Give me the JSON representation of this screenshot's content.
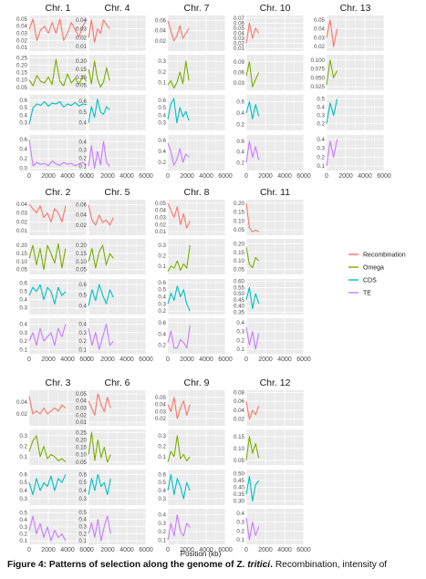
{
  "figure": {
    "x_axis_label": "Position (kb)",
    "x_ticks": [
      "0",
      "2000",
      "4000",
      "6000"
    ],
    "legend": [
      {
        "name": "Recombination",
        "color": "#F8766D"
      },
      {
        "name": "Omega",
        "color": "#7CAE00"
      },
      {
        "name": "CDS",
        "color": "#00BFC4"
      },
      {
        "name": "TE",
        "color": "#C77CFF"
      }
    ]
  },
  "caption": {
    "bold": "Figure 4: Patterns of selection along the genome of Z. ",
    "bold_italic": "tritici",
    "bold_end": ".",
    "rest": " Recombination, intensity of"
  },
  "chart_data": {
    "type": "line",
    "x_range": [
      0,
      6000
    ],
    "rows": [
      "Recombination",
      "Omega",
      "CDS",
      "TE"
    ],
    "panels": [
      {
        "chr": "Chr. 1",
        "length": 6000,
        "ticks": [
          [
            "0.01",
            "0.02",
            "0.03",
            "0.04",
            "0.05"
          ],
          [
            "0.05",
            "0.10",
            "0.15",
            "0.20",
            "0.25"
          ],
          [
            "0.3",
            "0.4",
            "0.5",
            "0.6"
          ],
          [
            "0.0",
            "0.2",
            "0.4",
            "0.6"
          ]
        ],
        "ranges": [
          [
            0.005,
            0.055
          ],
          [
            0.03,
            0.27
          ],
          [
            0.2,
            0.67
          ],
          [
            -0.05,
            0.7
          ]
        ],
        "series": [
          [
            0.035,
            0.05,
            0.02,
            0.035,
            0.04,
            0.03,
            0.045,
            0.03,
            0.05,
            0.02,
            0.03,
            0.045,
            0.035,
            0.025,
            0.04,
            0.05
          ],
          [
            0.1,
            0.06,
            0.13,
            0.09,
            0.08,
            0.12,
            0.07,
            0.24,
            0.09,
            0.06,
            0.14,
            0.08,
            0.11,
            0.07,
            0.13,
            0.09
          ],
          [
            0.28,
            0.5,
            0.55,
            0.53,
            0.58,
            0.52,
            0.56,
            0.55,
            0.58,
            0.51,
            0.55,
            0.53,
            0.57,
            0.52,
            0.55,
            0.54
          ],
          [
            0.6,
            0.05,
            0.12,
            0.08,
            0.1,
            0.05,
            0.15,
            0.09,
            0.06,
            0.12,
            0.08,
            0.1,
            0.05,
            0.09,
            0.12,
            0.07
          ]
        ]
      },
      {
        "chr": "Chr. 4",
        "length": 2200,
        "ticks": [
          [
            "0.01",
            "0.02",
            "0.03",
            "0.04"
          ],
          [
            "0.05",
            "0.10",
            "0.15",
            "0.20"
          ],
          [
            "0.4",
            "0.5",
            "0.6"
          ],
          [
            "0.1",
            "0.2",
            "0.3",
            "0.4"
          ]
        ],
        "ranges": [
          [
            0.005,
            0.045
          ],
          [
            0.02,
            0.24
          ],
          [
            0.33,
            0.66
          ],
          [
            0.05,
            0.48
          ]
        ],
        "series": [
          [
            0.02,
            0.04,
            0.015,
            0.03,
            0.025,
            0.04,
            0.035,
            0.03
          ],
          [
            0.15,
            0.06,
            0.2,
            0.09,
            0.04,
            0.07,
            0.16,
            0.08
          ],
          [
            0.4,
            0.55,
            0.45,
            0.62,
            0.5,
            0.48,
            0.55,
            0.52
          ],
          [
            0.1,
            0.35,
            0.08,
            0.28,
            0.12,
            0.4,
            0.15,
            0.1
          ]
        ]
      },
      {
        "chr": "Chr. 7",
        "length": 2200,
        "ticks": [
          [
            "0.02",
            "0.04",
            "0.06"
          ],
          [
            "0.1",
            "0.2",
            "0.3"
          ],
          [
            "0.3",
            "0.4",
            "0.5",
            "0.6"
          ],
          [
            "0.2",
            "0.4",
            "0.6"
          ]
        ],
        "ranges": [
          [
            0.0,
            0.07
          ],
          [
            0.03,
            0.36
          ],
          [
            0.2,
            0.67
          ],
          [
            0.05,
            0.7
          ]
        ],
        "series": [
          [
            0.06,
            0.04,
            0.02,
            0.03,
            0.05,
            0.025,
            0.035,
            0.045
          ],
          [
            0.08,
            0.12,
            0.05,
            0.1,
            0.2,
            0.09,
            0.3,
            0.12
          ],
          [
            0.35,
            0.55,
            0.62,
            0.3,
            0.5,
            0.38,
            0.45,
            0.33
          ],
          [
            0.55,
            0.4,
            0.15,
            0.25,
            0.45,
            0.2,
            0.35,
            0.3
          ]
        ]
      },
      {
        "chr": "Chr. 10",
        "length": 1300,
        "ticks": [
          [
            "0.01",
            "0.02",
            "0.03",
            "0.04",
            "0.05",
            "0.06",
            "0.07"
          ],
          [
            "0.03",
            "0.06",
            "0.09"
          ],
          [
            "0.2",
            "0.4",
            "0.6"
          ],
          [
            "0.2",
            "0.4",
            "0.6"
          ]
        ],
        "ranges": [
          [
            0.005,
            0.075
          ],
          [
            0.01,
            0.11
          ],
          [
            0.1,
            0.72
          ],
          [
            0.05,
            0.72
          ]
        ],
        "series": [
          [
            0.02,
            0.06,
            0.03,
            0.05,
            0.04
          ],
          [
            0.05,
            0.09,
            0.02,
            0.04,
            0.06
          ],
          [
            0.4,
            0.6,
            0.3,
            0.55,
            0.35
          ],
          [
            0.2,
            0.6,
            0.3,
            0.5,
            0.25
          ]
        ]
      },
      {
        "chr": "Chr. 13",
        "length": 1100,
        "ticks": [
          [
            "0.02",
            "0.03",
            "0.04",
            "0.05"
          ],
          [
            "0.025",
            "0.050",
            "0.075",
            "0.100"
          ],
          [
            "0.2",
            "0.3",
            "0.4",
            "0.5"
          ],
          [
            "0.1",
            "0.2",
            "0.3",
            "0.4"
          ]
        ],
        "ranges": [
          [
            0.015,
            0.055
          ],
          [
            0.015,
            0.115
          ],
          [
            0.12,
            0.55
          ],
          [
            0.05,
            0.45
          ]
        ],
        "series": [
          [
            0.03,
            0.05,
            0.02,
            0.04
          ],
          [
            0.03,
            0.1,
            0.05,
            0.07
          ],
          [
            0.2,
            0.45,
            0.3,
            0.5
          ],
          [
            0.1,
            0.38,
            0.2,
            0.4
          ]
        ]
      },
      {
        "chr": "Chr. 2",
        "length": 3800,
        "ticks": [
          [
            "0.01",
            "0.02",
            "0.03",
            "0.04"
          ],
          [
            "0.05",
            "0.10",
            "0.15",
            "0.20"
          ],
          [
            "0.3",
            "0.4",
            "0.5",
            "0.6"
          ],
          [
            "0.1",
            "0.2",
            "0.3",
            "0.4"
          ]
        ],
        "ranges": [
          [
            0.005,
            0.045
          ],
          [
            0.02,
            0.24
          ],
          [
            0.22,
            0.65
          ],
          [
            0.05,
            0.47
          ]
        ],
        "series": [
          [
            0.04,
            0.035,
            0.03,
            0.038,
            0.025,
            0.03,
            0.02,
            0.035,
            0.03,
            0.02,
            0.038
          ],
          [
            0.12,
            0.2,
            0.08,
            0.18,
            0.05,
            0.2,
            0.15,
            0.09,
            0.21,
            0.06,
            0.18
          ],
          [
            0.45,
            0.55,
            0.5,
            0.58,
            0.4,
            0.55,
            0.5,
            0.35,
            0.55,
            0.45,
            0.5
          ],
          [
            0.2,
            0.3,
            0.15,
            0.35,
            0.2,
            0.25,
            0.3,
            0.15,
            0.35,
            0.25,
            0.4
          ]
        ]
      },
      {
        "chr": "Chr. 5",
        "length": 2600,
        "ticks": [
          [
            "0.02",
            "0.04",
            "0.06"
          ],
          [
            "0.05",
            "0.10",
            "0.15",
            "0.20"
          ],
          [
            "0.4",
            "0.5",
            "0.6"
          ],
          [
            "0.1",
            "0.2",
            "0.3",
            "0.4"
          ]
        ],
        "ranges": [
          [
            0.0,
            0.07
          ],
          [
            0.02,
            0.24
          ],
          [
            0.32,
            0.65
          ],
          [
            0.05,
            0.47
          ]
        ],
        "series": [
          [
            0.06,
            0.03,
            0.02,
            0.04,
            0.025,
            0.03,
            0.02,
            0.035
          ],
          [
            0.1,
            0.18,
            0.06,
            0.16,
            0.2,
            0.08,
            0.15,
            0.12
          ],
          [
            0.4,
            0.55,
            0.45,
            0.6,
            0.5,
            0.42,
            0.55,
            0.48
          ],
          [
            0.35,
            0.15,
            0.3,
            0.1,
            0.25,
            0.4,
            0.15,
            0.2
          ]
        ]
      },
      {
        "chr": "Chr. 8",
        "length": 2300,
        "ticks": [
          [
            "0.01",
            "0.02",
            "0.03",
            "0.04",
            "0.05"
          ],
          [
            "0.1",
            "0.2",
            "0.3"
          ],
          [
            "0.2",
            "0.3",
            "0.4",
            "0.5",
            "0.6"
          ],
          [
            "0.2",
            "0.4",
            "0.6"
          ]
        ],
        "ranges": [
          [
            0.005,
            0.055
          ],
          [
            0.02,
            0.36
          ],
          [
            0.15,
            0.65
          ],
          [
            0.05,
            0.68
          ]
        ],
        "series": [
          [
            0.05,
            0.04,
            0.03,
            0.045,
            0.02,
            0.035,
            0.015,
            0.025
          ],
          [
            0.05,
            0.1,
            0.08,
            0.15,
            0.06,
            0.12,
            0.08,
            0.3
          ],
          [
            0.3,
            0.45,
            0.35,
            0.55,
            0.4,
            0.5,
            0.3,
            0.2
          ],
          [
            0.25,
            0.45,
            0.15,
            0.15,
            0.3,
            0.25,
            0.15,
            0.55
          ]
        ]
      },
      {
        "chr": "Chr. 11",
        "length": 1300,
        "ticks": [
          [
            "0.05",
            "0.10",
            "0.15",
            "0.20"
          ],
          [
            "0.05",
            "0.10",
            "0.15",
            "0.20"
          ],
          [
            "0.35",
            "0.40",
            "0.45",
            "0.50",
            "0.55",
            "0.60"
          ],
          [
            "0.1",
            "0.2",
            "0.3",
            "0.4"
          ]
        ],
        "ranges": [
          [
            0.02,
            0.22
          ],
          [
            0.02,
            0.23
          ],
          [
            0.33,
            0.62
          ],
          [
            0.05,
            0.45
          ]
        ],
        "series": [
          [
            0.2,
            0.06,
            0.04,
            0.05,
            0.04
          ],
          [
            0.18,
            0.08,
            0.06,
            0.12,
            0.1
          ],
          [
            0.45,
            0.55,
            0.38,
            0.5,
            0.42
          ],
          [
            0.35,
            0.15,
            0.3,
            0.1,
            0.28
          ]
        ]
      },
      {
        "chr": "Chr. 3",
        "length": 3800,
        "ticks": [
          [
            "0.02",
            "0.04"
          ],
          [
            "0.1",
            "0.2",
            "0.3"
          ],
          [
            "0.3",
            "0.4",
            "0.5",
            "0.6"
          ],
          [
            "0.1",
            "0.2",
            "0.3",
            "0.4",
            "0.5"
          ]
        ],
        "ranges": [
          [
            0.0,
            0.06
          ],
          [
            0.02,
            0.36
          ],
          [
            0.22,
            0.66
          ],
          [
            0.05,
            0.56
          ]
        ],
        "series": [
          [
            0.05,
            0.02,
            0.025,
            0.02,
            0.03,
            0.02,
            0.025,
            0.03,
            0.025,
            0.035,
            0.03
          ],
          [
            0.15,
            0.25,
            0.3,
            0.1,
            0.2,
            0.08,
            0.12,
            0.1,
            0.06,
            0.08,
            0.05
          ],
          [
            0.5,
            0.35,
            0.55,
            0.4,
            0.5,
            0.45,
            0.58,
            0.4,
            0.55,
            0.5,
            0.6
          ],
          [
            0.25,
            0.45,
            0.2,
            0.35,
            0.15,
            0.3,
            0.1,
            0.25,
            0.15,
            0.2,
            0.1
          ]
        ]
      },
      {
        "chr": "Chr. 6",
        "length": 2300,
        "ticks": [
          [
            "0.01",
            "0.02",
            "0.03",
            "0.04",
            "0.05"
          ],
          [
            "0.05",
            "0.10",
            "0.15",
            "0.20",
            "0.25"
          ],
          [
            "0.3",
            "0.4",
            "0.5",
            "0.6"
          ],
          [
            "0.1",
            "0.2",
            "0.3",
            "0.4",
            "0.5"
          ]
        ],
        "ranges": [
          [
            0.005,
            0.055
          ],
          [
            0.03,
            0.27
          ],
          [
            0.22,
            0.66
          ],
          [
            0.05,
            0.55
          ]
        ],
        "series": [
          [
            0.04,
            0.03,
            0.02,
            0.05,
            0.035,
            0.025,
            0.045,
            0.03
          ],
          [
            0.1,
            0.25,
            0.06,
            0.2,
            0.08,
            0.15,
            0.05,
            0.1
          ],
          [
            0.35,
            0.55,
            0.4,
            0.6,
            0.45,
            0.5,
            0.35,
            0.55
          ],
          [
            0.2,
            0.35,
            0.15,
            0.4,
            0.1,
            0.3,
            0.45,
            0.2
          ]
        ]
      },
      {
        "chr": "Chr. 9",
        "length": 2300,
        "ticks": [
          [
            "0.02",
            "0.03",
            "0.04",
            "0.05"
          ],
          [
            "0.1",
            "0.2",
            "0.3"
          ],
          [
            "0.3",
            "0.4",
            "0.5",
            "0.6"
          ],
          [
            "0.1",
            "0.2",
            "0.3",
            "0.4"
          ]
        ],
        "ranges": [
          [
            0.01,
            0.06
          ],
          [
            0.02,
            0.36
          ],
          [
            0.22,
            0.66
          ],
          [
            0.05,
            0.47
          ]
        ],
        "series": [
          [
            0.04,
            0.03,
            0.05,
            0.02,
            0.035,
            0.045,
            0.025,
            0.04
          ],
          [
            0.05,
            0.15,
            0.1,
            0.3,
            0.08,
            0.12,
            0.06,
            0.1
          ],
          [
            0.4,
            0.6,
            0.35,
            0.55,
            0.45,
            0.3,
            0.5,
            0.4
          ],
          [
            0.1,
            0.3,
            0.15,
            0.4,
            0.2,
            0.15,
            0.3,
            0.25
          ]
        ]
      },
      {
        "chr": "Chr. 12",
        "length": 1300,
        "ticks": [
          [
            "0.02",
            "0.04",
            "0.06",
            "0.08"
          ],
          [
            "0.05",
            "0.10",
            "0.15"
          ],
          [
            "0.30",
            "0.35",
            "0.40",
            "0.45",
            "0.50"
          ],
          [
            "0.1",
            "0.2",
            "0.3",
            "0.4"
          ]
        ],
        "ranges": [
          [
            0.005,
            0.085
          ],
          [
            0.03,
            0.18
          ],
          [
            0.27,
            0.53
          ],
          [
            0.05,
            0.45
          ]
        ],
        "series": [
          [
            0.06,
            0.02,
            0.04,
            0.03,
            0.05
          ],
          [
            0.05,
            0.15,
            0.08,
            0.12,
            0.06
          ],
          [
            0.35,
            0.48,
            0.3,
            0.42,
            0.45
          ],
          [
            0.35,
            0.1,
            0.3,
            0.15,
            0.25
          ]
        ]
      }
    ]
  }
}
